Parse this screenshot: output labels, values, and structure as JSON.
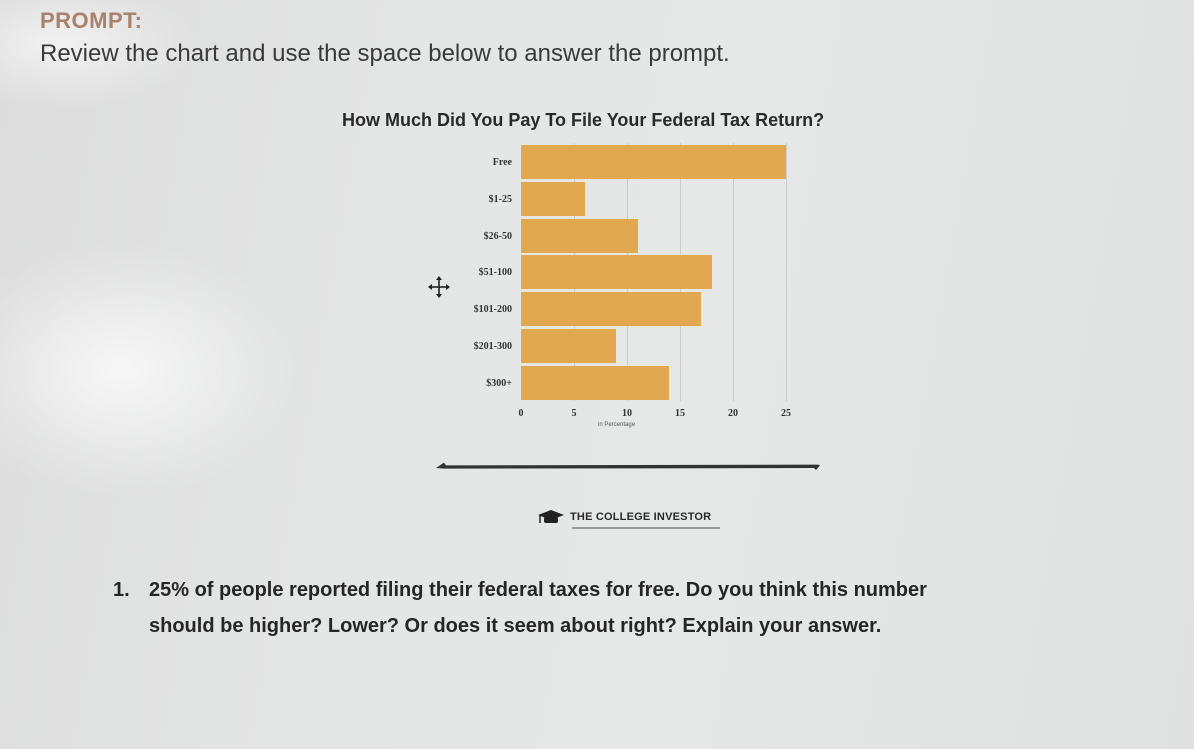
{
  "worksheet": {
    "heading": "PROMPT:",
    "instructions": "Review the chart and use the space below to answer the prompt.",
    "question": {
      "number": "1.",
      "line1": "25% of people reported filing their federal taxes for free. Do you think this number",
      "line2": "should be higher? Lower? Or does it seem about right? Explain your answer."
    },
    "source_logo": "THE COLLEGE INVESTOR"
  },
  "chart_data": {
    "type": "bar",
    "orientation": "horizontal",
    "title": "How Much Did You Pay To File Your Federal Tax Return?",
    "xlabel": "in Percentage",
    "ylabel": "",
    "categories": [
      "Free",
      "$1-25",
      "$26-50",
      "$51-100",
      "$101-200",
      "$201-300",
      "$300+"
    ],
    "values": [
      25,
      6,
      11,
      18,
      17,
      9,
      14
    ],
    "xlim": [
      0,
      25
    ],
    "x_ticks": [
      "0",
      "5",
      "10",
      "15",
      "20",
      "25"
    ],
    "grid": true,
    "bar_color": "#e1a84f",
    "legend": null
  }
}
